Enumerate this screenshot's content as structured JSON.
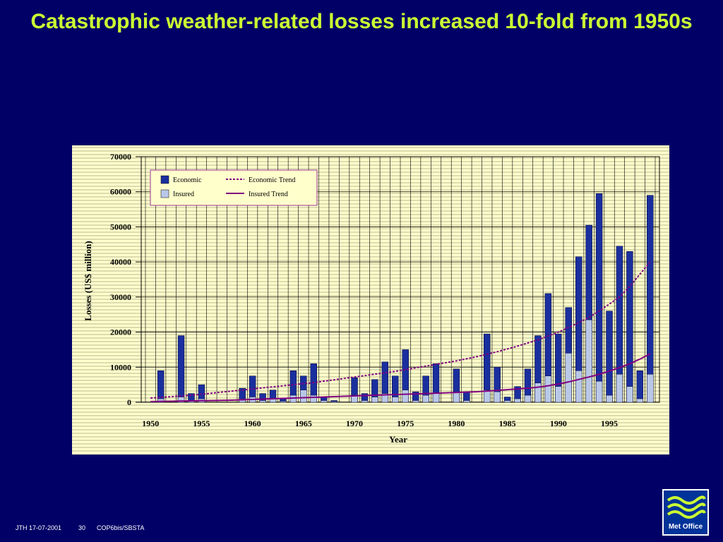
{
  "slide": {
    "title": "Catastrophic weather-related losses increased 10-fold from 1950s"
  },
  "footer": {
    "author_date": "JTH 17-07-2001",
    "page_number": "30",
    "event": "COP6bis/SBSTA"
  },
  "logo": {
    "text": "Met Office"
  },
  "colors": {
    "background": "#000066",
    "title": "#ccff33",
    "plot_background": "#ffffcc",
    "economic": "#1a2f9e",
    "insured": "#b9c8e8",
    "economic_trend": "#800080",
    "insured_trend": "#800080"
  },
  "chart_data": {
    "type": "bar",
    "title": "",
    "xlabel": "Year",
    "ylabel": "Losses (US$ million)",
    "ylim": [
      0,
      70000
    ],
    "yticks": [
      "0",
      "10000",
      "20000",
      "30000",
      "40000",
      "50000",
      "60000",
      "70000"
    ],
    "xticks": [
      "1950",
      "1955",
      "1960",
      "1965",
      "1970",
      "1975",
      "1980",
      "1985",
      "1990",
      "1995"
    ],
    "grid": true,
    "legend_position": "top-left",
    "x": [
      1950,
      1951,
      1952,
      1953,
      1954,
      1955,
      1956,
      1957,
      1958,
      1959,
      1960,
      1961,
      1962,
      1963,
      1964,
      1965,
      1966,
      1967,
      1968,
      1969,
      1970,
      1971,
      1972,
      1973,
      1974,
      1975,
      1976,
      1977,
      1978,
      1979,
      1980,
      1981,
      1982,
      1983,
      1984,
      1985,
      1986,
      1987,
      1988,
      1989,
      1990,
      1991,
      1992,
      1993,
      1994,
      1995,
      1996,
      1997,
      1998,
      1999
    ],
    "series": [
      {
        "name": "Economic",
        "values": [
          0,
          9000,
          0,
          19000,
          2500,
          5000,
          0,
          0,
          0,
          4000,
          7500,
          2500,
          3500,
          1000,
          9000,
          7500,
          11000,
          1500,
          500,
          0,
          7000,
          2500,
          6500,
          11500,
          7500,
          15000,
          3000,
          7500,
          11000,
          0,
          9500,
          3000,
          0,
          19500,
          10000,
          1500,
          4500,
          9500,
          19000,
          31000,
          19500,
          27000,
          41500,
          50500,
          59500,
          26000,
          44500,
          43000,
          9000,
          59000
        ]
      },
      {
        "name": "Insured",
        "values": [
          0,
          1000,
          0,
          1500,
          500,
          1000,
          0,
          0,
          0,
          1000,
          1500,
          500,
          1000,
          300,
          2000,
          3500,
          2000,
          500,
          200,
          0,
          2000,
          500,
          1500,
          2500,
          1500,
          3500,
          500,
          2000,
          2500,
          0,
          3000,
          500,
          0,
          3500,
          3000,
          500,
          1000,
          2000,
          5500,
          7500,
          4500,
          14000,
          9000,
          23500,
          6000,
          2000,
          8000,
          4500,
          1000,
          8000
        ]
      },
      {
        "name": "Economic Trend",
        "values": [
          1200,
          1400,
          1600,
          1800,
          2000,
          2300,
          2600,
          2900,
          3200,
          3500,
          3800,
          4100,
          4400,
          4700,
          5000,
          5300,
          5600,
          6000,
          6400,
          6800,
          7200,
          7600,
          8000,
          8400,
          8800,
          9300,
          9800,
          10300,
          10800,
          11300,
          11800,
          12400,
          13000,
          13700,
          14400,
          15200,
          16000,
          16900,
          17800,
          18900,
          20000,
          21300,
          22700,
          24200,
          26000,
          28000,
          30000,
          33000,
          36500,
          40000
        ]
      },
      {
        "name": "Insured Trend",
        "values": [
          200,
          250,
          300,
          350,
          400,
          450,
          500,
          550,
          600,
          700,
          800,
          900,
          1000,
          1100,
          1200,
          1300,
          1400,
          1500,
          1600,
          1700,
          1800,
          1900,
          2000,
          2100,
          2200,
          2300,
          2400,
          2500,
          2600,
          2700,
          2800,
          2900,
          3000,
          3200,
          3400,
          3600,
          3800,
          4000,
          4300,
          4700,
          5200,
          5800,
          6500,
          7200,
          8000,
          8900,
          9900,
          11000,
          12300,
          13800
        ]
      }
    ]
  }
}
